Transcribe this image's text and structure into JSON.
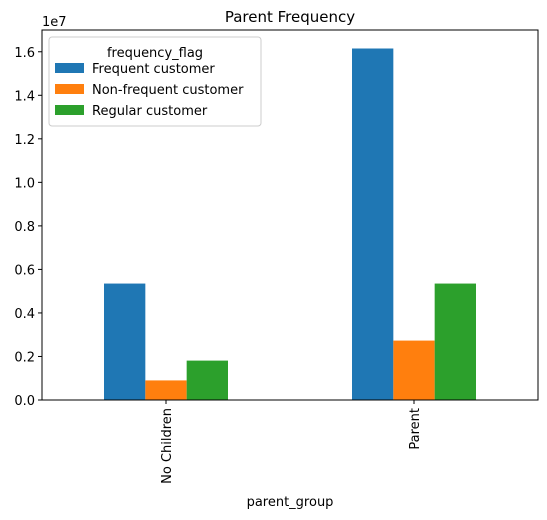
{
  "chart_data": {
    "type": "bar",
    "title": "Parent Frequency",
    "xlabel": "parent_group",
    "ylabel": "",
    "y_scale_label": "1e7",
    "y_multiplier": 10000000,
    "categories": [
      "No Children",
      "Parent"
    ],
    "series": [
      {
        "name": "Frequent customer",
        "color": "#1f77b4",
        "values": [
          5350000,
          16150000
        ]
      },
      {
        "name": "Non-frequent customer",
        "color": "#ff7f0e",
        "values": [
          900000,
          2730000
        ]
      },
      {
        "name": "Regular customer",
        "color": "#2ca02c",
        "values": [
          1810000,
          5350000
        ]
      }
    ],
    "ylim": [
      0,
      17000000
    ],
    "yticks": [
      0,
      2000000,
      4000000,
      6000000,
      8000000,
      10000000,
      12000000,
      14000000,
      16000000
    ],
    "ytick_labels": [
      "0.0",
      "0.2",
      "0.4",
      "0.6",
      "0.8",
      "1.0",
      "1.2",
      "1.4",
      "1.6"
    ],
    "legend": {
      "title": "frequency_flag",
      "position": "top-left"
    },
    "grid": false
  }
}
